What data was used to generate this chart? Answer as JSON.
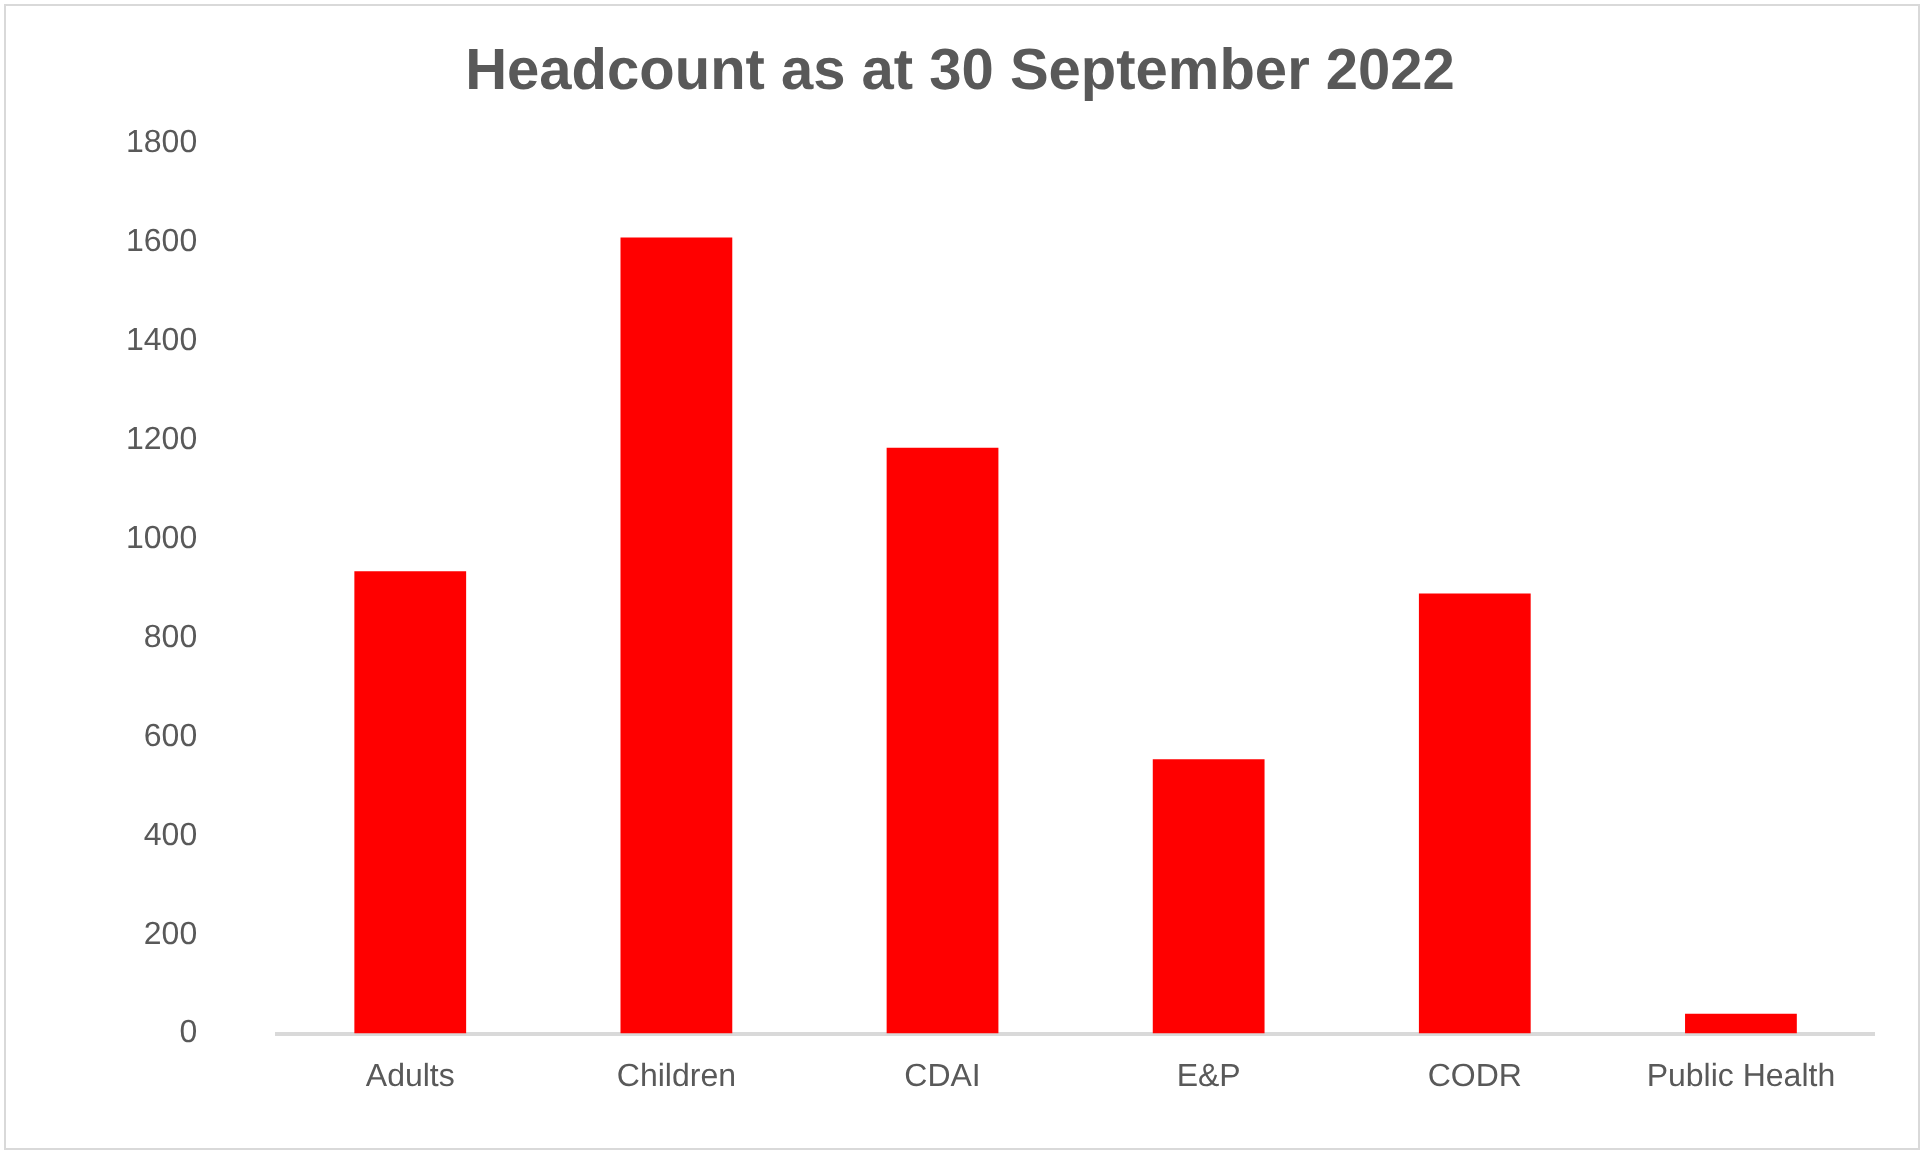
{
  "chart_data": {
    "type": "bar",
    "title": "Headcount as at 30 September 2022",
    "categories": [
      "Adults",
      "Children",
      "CDAI",
      "E&P",
      "CODR",
      "Public Health"
    ],
    "values": [
      935,
      1610,
      1185,
      555,
      890,
      40
    ],
    "color": "#ff0000",
    "ylim": [
      0,
      1800
    ],
    "yticks": [
      0,
      200,
      400,
      600,
      800,
      1000,
      1200,
      1400,
      1600,
      1800
    ],
    "grid": false,
    "legend": false
  }
}
